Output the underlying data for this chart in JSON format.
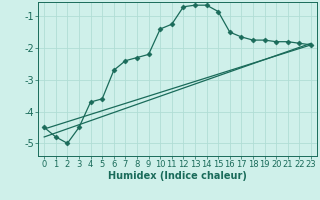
{
  "xlabel": "Humidex (Indice chaleur)",
  "background_color": "#cff0ea",
  "grid_color": "#b0ddd5",
  "line_color": "#1a6b5a",
  "xlim": [
    -0.5,
    23.5
  ],
  "ylim": [
    -5.4,
    -0.55
  ],
  "yticks": [
    -5,
    -4,
    -3,
    -2,
    -1
  ],
  "xticks": [
    0,
    1,
    2,
    3,
    4,
    5,
    6,
    7,
    8,
    9,
    10,
    11,
    12,
    13,
    14,
    15,
    16,
    17,
    18,
    19,
    20,
    21,
    22,
    23
  ],
  "main_x": [
    0,
    1,
    2,
    3,
    4,
    5,
    6,
    7,
    8,
    9,
    10,
    11,
    12,
    13,
    14,
    15,
    16,
    17,
    18,
    19,
    20,
    21,
    22,
    23
  ],
  "main_y": [
    -4.5,
    -4.8,
    -5.0,
    -4.5,
    -3.7,
    -3.6,
    -2.7,
    -2.4,
    -2.3,
    -2.2,
    -1.4,
    -1.25,
    -0.7,
    -0.65,
    -0.65,
    -0.85,
    -1.5,
    -1.65,
    -1.75,
    -1.75,
    -1.8,
    -1.8,
    -1.85,
    -1.9
  ],
  "line2_x": [
    0,
    23
  ],
  "line2_y": [
    -4.8,
    -1.85
  ],
  "line3_x": [
    0,
    23
  ],
  "line3_y": [
    -4.55,
    -1.9
  ],
  "marker": "D",
  "markersize": 2.5,
  "linewidth": 0.9,
  "tick_fontsize": 6,
  "xlabel_fontsize": 7
}
